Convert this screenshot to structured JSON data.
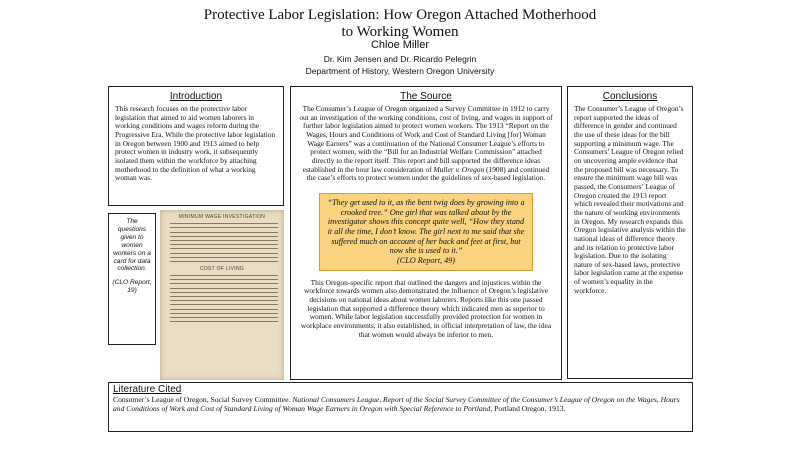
{
  "header": {
    "title": "Protective Labor Legislation: How Oregon Attached Motherhood to Working Women",
    "author": "Chloe Miller",
    "advisors": "Dr. Kim Jensen and Dr. Ricardo Pelegrin",
    "department": "Department of History, Western Oregon University"
  },
  "introduction": {
    "heading": "Introduction",
    "body": "This research focuses on the protective labor legislation that aimed to aid women laborers in working conditions and wages reform during the Progressive Era. While the protective labor legislation in Oregon between 1900 and 1913 aimed to help protect women in industry work, it subsequently isolated them within the workforce by attaching motherhood to the definition of what a working woman was."
  },
  "source": {
    "heading": "The Source",
    "paragraph1_start": "The Consumer’s League of Oregon organized a Survey Committee in 1912 to carry out an investigation of the working conditions, cost of living, and wages in support of further labor legislation aimed to protect women workers. The 1913 “Report on the Wages, Hours and Conditions of Work and Cost of Standard Living [for] Woman Wage Earners” was a continuation of the National Consumer League’s efforts to protect women, with the “Bill for an Industrial Welfare Commission” attached directly to the report itself. This report and bill supported the difference ideas established in the hour law consideration of",
    "paragraph1_case": "Muller v. Oregon",
    "paragraph1_end": "(1908) and continued the case’s efforts to protect women under the guidelines of sex-based legislation.",
    "quote": "“They get used to it, as the bent twig does by growing into a crooked tree.” One girl that was talked about by the investigator shows this concept quite well, “How they stand it all the time, I don’t know. The girl next to me said that she suffered much on account of her back and feet at first, but now she is used to it.”",
    "quote_citation": "(CLO Report, 49)",
    "paragraph2": "This Oregon-specific report that outlined the dangers and injustices within the workforce towards women also demonstrated the influence of Oregon’s legislative decisions on national ideas about women laborers. Reports like this one passed legislation that supported a difference theory which indicated men as superior to women. While labor legislation successfully provided protection for women in workplace environments, it also established, in official interpretation of law, the idea that women would always be inferior to men."
  },
  "card": {
    "caption": "The questions given to women workers on a card for data collection.",
    "citation": "(CLO Report, 19)",
    "image_heading_1": "MINIMUM WAGE INVESTIGATION",
    "image_heading_2": "COST OF LIVING"
  },
  "conclusions": {
    "heading": "Conclusions",
    "body": "The Consumer’s League of Oregon’s report supported the ideas of difference in gender and continued the use of these ideas for the bill supporting a minimum wage. The Consumers’ League of Oregon relied on uncovering ample evidence that the proposed bill was necessary. To ensure the minimum wage bill was passed, the Consumers’ League of Oregon created the 1913 report which revealed their motivations and the nature of working environments in Oregon. My research expands this Oregon legislative analysis within the national ideas of difference theory and its relation to protective labor legislation. Due to the isolating nature of sex-based laws, protective labor legislation came at the expense of women’s equality in the workforce."
  },
  "literature": {
    "heading": "Literature Cited",
    "entry_start": "Consumer’s League of Oregon, Social Survey Committee.",
    "entry_title": "National Consumers League, Report of the Social Survey Committee of the Consumer’s League of Oregon on the Wages, Hours and Conditions of Work and Cost of Standard Living of Woman Wage Earners in Oregon with Special Reference to Portland,",
    "entry_end": "Portland Oregon. 1913."
  }
}
